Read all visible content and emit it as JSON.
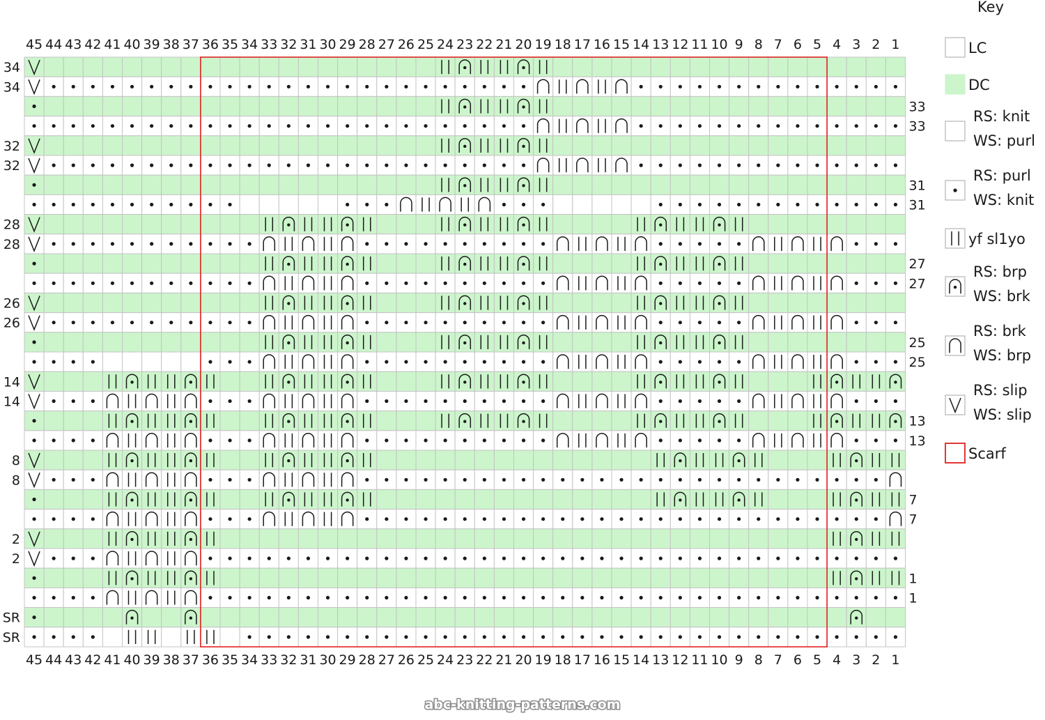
{
  "key": {
    "title": "Key",
    "items": [
      {
        "id": "lc",
        "lines": [
          "LC"
        ],
        "swatch": "white"
      },
      {
        "id": "dc",
        "lines": [
          "DC"
        ],
        "swatch": "green"
      },
      {
        "id": "knit",
        "lines": [
          "RS: knit",
          "WS: purl"
        ],
        "swatch": "white"
      },
      {
        "id": "purl",
        "lines": [
          "RS: purl",
          "WS: knit"
        ],
        "swatch": "dot"
      },
      {
        "id": "yfsl1yo",
        "lines": [
          "yf sl1yo"
        ],
        "swatch": "yf"
      },
      {
        "id": "brp",
        "lines": [
          "RS: brp",
          "WS: brk"
        ],
        "swatch": "brp"
      },
      {
        "id": "brk",
        "lines": [
          "RS: brk",
          "WS: brp"
        ],
        "swatch": "brk"
      },
      {
        "id": "slip",
        "lines": [
          "RS: slip",
          "WS: slip"
        ],
        "swatch": "slip"
      },
      {
        "id": "scarf",
        "lines": [
          "Scarf"
        ],
        "swatch": "scarf"
      }
    ]
  },
  "colors": {
    "dc": "#ccf5cc",
    "lc": "#ffffff",
    "grid": "#c4c4c4",
    "scarf": "#e02020",
    "ink": "#1a1a1a"
  },
  "columns": [
    45,
    44,
    43,
    42,
    41,
    40,
    39,
    38,
    37,
    36,
    35,
    34,
    33,
    32,
    31,
    30,
    29,
    28,
    27,
    26,
    25,
    24,
    23,
    22,
    21,
    20,
    19,
    18,
    17,
    16,
    15,
    14,
    13,
    12,
    11,
    10,
    9,
    8,
    7,
    6,
    5,
    4,
    3,
    2,
    1
  ],
  "scarf_columns": [
    36,
    5
  ],
  "left_row_labels": [
    "34",
    "34",
    "",
    "",
    "32",
    "32",
    "",
    "",
    "28",
    "28",
    "",
    "",
    "26",
    "26",
    "",
    "",
    "14",
    "14",
    "",
    "",
    "8",
    "8",
    "",
    "",
    "2",
    "2",
    "",
    "",
    "SR",
    "SR"
  ],
  "right_row_labels": [
    "",
    "",
    "33",
    "33",
    "",
    "",
    "31",
    "31",
    "",
    "",
    "27",
    "27",
    "",
    "",
    "25",
    "25",
    "",
    "",
    "13",
    "13",
    "",
    "",
    "7",
    "7",
    "",
    "",
    "1",
    "1",
    "",
    ""
  ],
  "rows": [
    "VGGGGGGGGGGGGGGGGGGGGYRYYRYGGGGGGGGGGGGGGGGGGGG",
    "V.........................NYNYN..................",
    ".GGGGGGGGGGGGGGGGGGGGYRYYRYGGGGGGGGGGGGGGGGGGGV",
    "..........................NYNYN.................V",
    "VGGGGGGGGGGGGGGGGGGGGYRYYRYGGGGGGGGGGGGGGGGGGGG",
    "V.........................NYNYN..................",
    ".GGGGGGGGGGGGGGGGGGGGYRYYRYGGGGGGGGGGGGGGGGGGGV",
    "...........WWWWW...NYNYN...WWWWW................V",
    "VGGGGGGGGGGGYRYYRYGGGYRYYRYGGGGYRYYRYGGGGGGGGGGG",
    "V...........NYNYN..........NYNYN.....NYNYN.........",
    ".GGGGGGGGGGGYRYYRYGGGYRYYRYGGGGYRYYRYGGGGGGGGGGV",
    "............NYNYN..........NYNYN.....NYNYN........V",
    "VGGGGGGGGGGGYRYYRYGGGYRYYRYGGGGYRYYRYGGGGGGGGGGG",
    "V...........NYNYN..........NYNYN.....NYNYN.........",
    ".GGGGGGGGGGGYRYYRYGGGYRYYRYGGGGYRYYRYGGGGGGGGGGV",
    "....WWWWW...NYNYN..........NYNYN.....NYNYN...WWWWW.V",
    "VGGGYRYYRYGGYRYYRYGGGYRYYRYGGGGYRYYRYGGGYRYYRYGGG",
    "V...NYNYN...NYNYN..........NYNYN.....NYNYN...NYNYN...",
    ".GGGYRYYRYGGYRYYRYGGGYRYYRYGGGGYRYYRYGGGYRYYRYGGV",
    "....NYNYN...NYNYN..........NYNYN.....NYNYN...NYNYN..V",
    "VGGGYRYYRYGGYRYYRYGGGGGGGGGGGGGGYRYYRYGGGYRYYRYGGG",
    "V...NYNYN...NYNYN...........................NYNYN...NYNYN...",
    ".GGGYRYYRYGGYRYYRYGGGGGGGGGGGGGGYRYYRYGGGYRYYRYGGV",
    "....NYNYN...NYNYN...........................NYNYN...NYNYN..V",
    "VGGGYRYYRYGGGGGGGGGGGGGGGGGGGGGGGGGGGGGGGYRYYRYGGG",
    "V...NYNYN....................................NYNYN...",
    ".GGGYRYYRYGGGGGGGGGGGGGGGGGGGGGGGGGGGGGGGYRYYRYGGV",
    "....NYNYN....................................NYNYN..V",
    ".GGGGRGGRGGGGGGGGGGGGGGGGGGGGGGGGGGGGGGGGGRGGRGGGG",
    "....WYYWYYW...................................WYYWYYW..."
  ],
  "watermark": "abc-knitting-patterns.com"
}
